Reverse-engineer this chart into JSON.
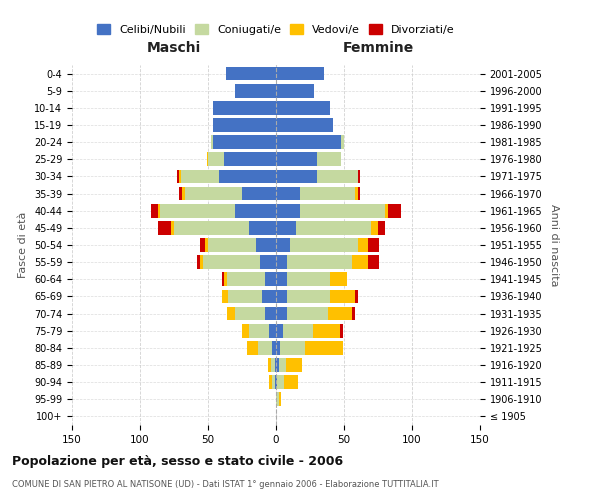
{
  "age_groups": [
    "100+",
    "95-99",
    "90-94",
    "85-89",
    "80-84",
    "75-79",
    "70-74",
    "65-69",
    "60-64",
    "55-59",
    "50-54",
    "45-49",
    "40-44",
    "35-39",
    "30-34",
    "25-29",
    "20-24",
    "15-19",
    "10-14",
    "5-9",
    "0-4"
  ],
  "birth_years": [
    "≤ 1905",
    "1906-1910",
    "1911-1915",
    "1916-1920",
    "1921-1925",
    "1926-1930",
    "1931-1935",
    "1936-1940",
    "1941-1945",
    "1946-1950",
    "1951-1955",
    "1956-1960",
    "1961-1965",
    "1966-1970",
    "1971-1975",
    "1976-1980",
    "1981-1985",
    "1986-1990",
    "1991-1995",
    "1996-2000",
    "2001-2005"
  ],
  "maschi_celibi": [
    0,
    0,
    1,
    1,
    3,
    5,
    8,
    10,
    8,
    12,
    15,
    20,
    30,
    25,
    42,
    38,
    46,
    46,
    46,
    30,
    37
  ],
  "maschi_coniugati": [
    0,
    0,
    2,
    3,
    10,
    15,
    22,
    25,
    28,
    42,
    35,
    55,
    55,
    42,
    28,
    12,
    2,
    0,
    0,
    0,
    0
  ],
  "maschi_vedovi": [
    0,
    0,
    2,
    2,
    8,
    5,
    6,
    5,
    2,
    2,
    2,
    2,
    2,
    2,
    1,
    1,
    0,
    0,
    0,
    0,
    0
  ],
  "maschi_divorziati": [
    0,
    0,
    0,
    0,
    0,
    0,
    0,
    0,
    2,
    2,
    4,
    10,
    5,
    2,
    2,
    0,
    0,
    0,
    0,
    0,
    0
  ],
  "femmine_celibi": [
    0,
    0,
    1,
    2,
    3,
    5,
    8,
    8,
    8,
    8,
    10,
    15,
    18,
    18,
    30,
    30,
    48,
    42,
    40,
    28,
    35
  ],
  "femmine_coniugati": [
    0,
    2,
    5,
    5,
    18,
    22,
    30,
    32,
    32,
    48,
    50,
    55,
    62,
    40,
    30,
    18,
    2,
    0,
    0,
    0,
    0
  ],
  "femmine_vedovi": [
    0,
    2,
    10,
    12,
    28,
    20,
    18,
    18,
    12,
    12,
    8,
    5,
    2,
    2,
    0,
    0,
    0,
    0,
    0,
    0,
    0
  ],
  "femmine_divorziati": [
    0,
    0,
    0,
    0,
    0,
    2,
    2,
    2,
    0,
    8,
    8,
    5,
    10,
    2,
    2,
    0,
    0,
    0,
    0,
    0,
    0
  ],
  "colors": {
    "celibi": "#4472c4",
    "coniugati": "#c5d9a0",
    "vedovi": "#ffc000",
    "divorziati": "#cc0000"
  },
  "title": "Popolazione per età, sesso e stato civile - 2006",
  "subtitle": "COMUNE DI SAN PIETRO AL NATISONE (UD) - Dati ISTAT 1° gennaio 2006 - Elaborazione TUTTITALIA.IT",
  "xlabel_left": "Maschi",
  "xlabel_right": "Femmine",
  "ylabel_left": "Fasce di età",
  "ylabel_right": "Anni di nascita",
  "xlim": 150,
  "legend_labels": [
    "Celibi/Nubili",
    "Coniugati/e",
    "Vedovi/e",
    "Divorziati/e"
  ],
  "bg_color": "#ffffff",
  "grid_color": "#cccccc"
}
